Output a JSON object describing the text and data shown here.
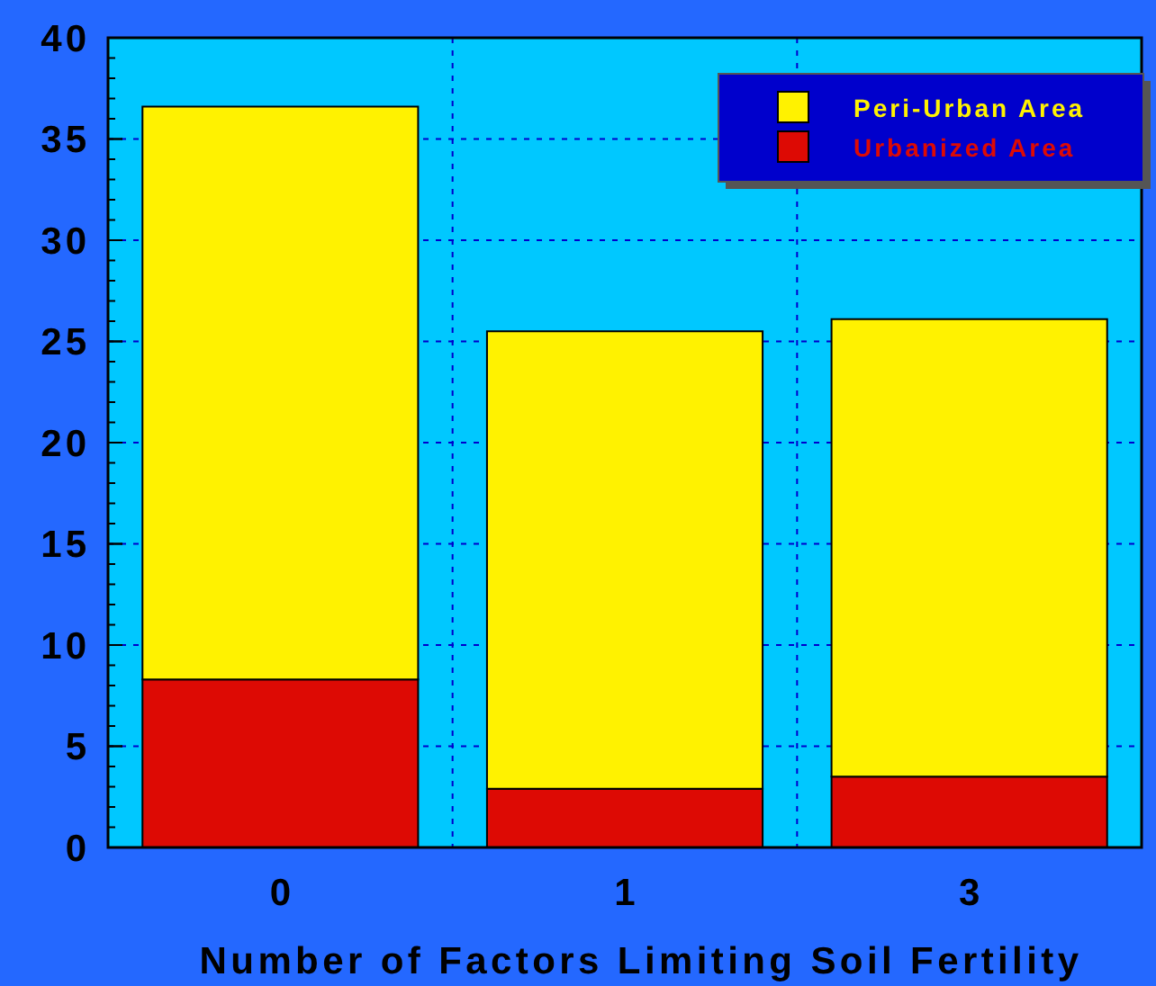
{
  "chart_data": {
    "type": "bar",
    "xlabel": "Number of Factors Limiting Soil Fertility",
    "categories": [
      "0",
      "1",
      "3"
    ],
    "stacked": true,
    "series": [
      {
        "name": "Urbanized Area",
        "color": "#dd0a04",
        "values": [
          8.3,
          2.9,
          3.5
        ]
      },
      {
        "name": "Peri-Urban Area",
        "color": "#fff200",
        "values": [
          28.3,
          22.6,
          22.6
        ]
      }
    ],
    "bands": [
      {
        "axis": "y",
        "from": 0,
        "to": 40,
        "color": "#00c8ff"
      }
    ],
    "ylim": [
      0,
      40
    ],
    "yticks": [
      0,
      5,
      10,
      15,
      20,
      25,
      30,
      35,
      40
    ],
    "grid": true,
    "legend": "top right"
  }
}
